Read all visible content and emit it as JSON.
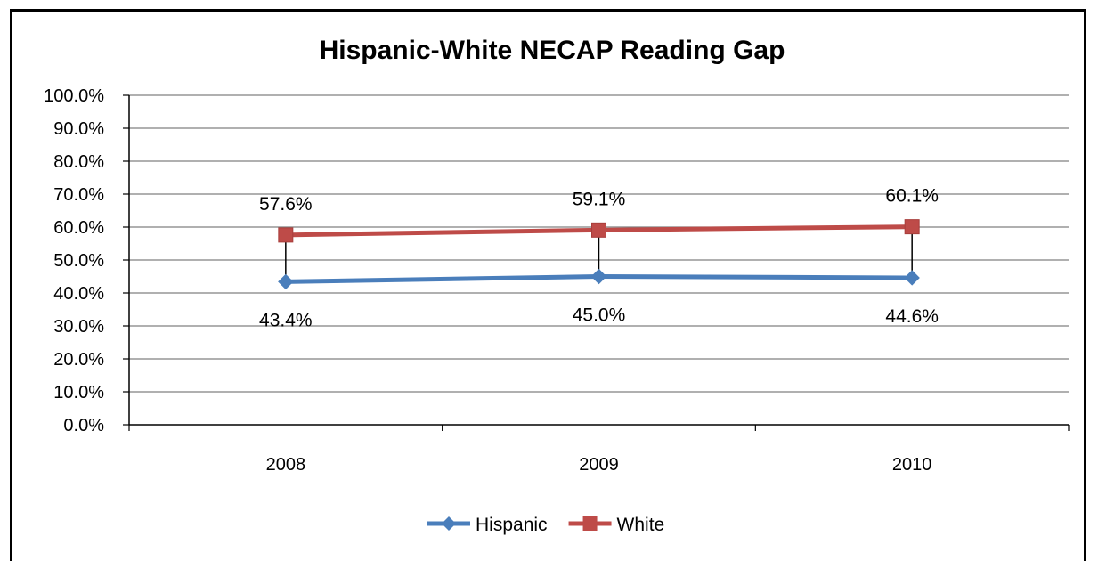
{
  "chart_data": {
    "type": "line",
    "title": "Hispanic-White NECAP Reading Gap",
    "categories": [
      "2008",
      "2009",
      "2010"
    ],
    "y_ticks": [
      "0.0%",
      "10.0%",
      "20.0%",
      "30.0%",
      "40.0%",
      "50.0%",
      "60.0%",
      "70.0%",
      "80.0%",
      "90.0%",
      "100.0%"
    ],
    "ylim": [
      0,
      100
    ],
    "grid": true,
    "legend_position": "bottom",
    "series": [
      {
        "name": "Hispanic",
        "values": [
          43.4,
          45.0,
          44.6
        ],
        "labels": [
          "43.4%",
          "45.0%",
          "44.6%"
        ],
        "color": "#4a7ebb",
        "marker": "diamond"
      },
      {
        "name": "White",
        "values": [
          57.6,
          59.1,
          60.1
        ],
        "labels": [
          "57.6%",
          "59.1%",
          "60.1%"
        ],
        "color": "#be4b48",
        "marker": "square"
      }
    ],
    "drop_lines": true
  }
}
